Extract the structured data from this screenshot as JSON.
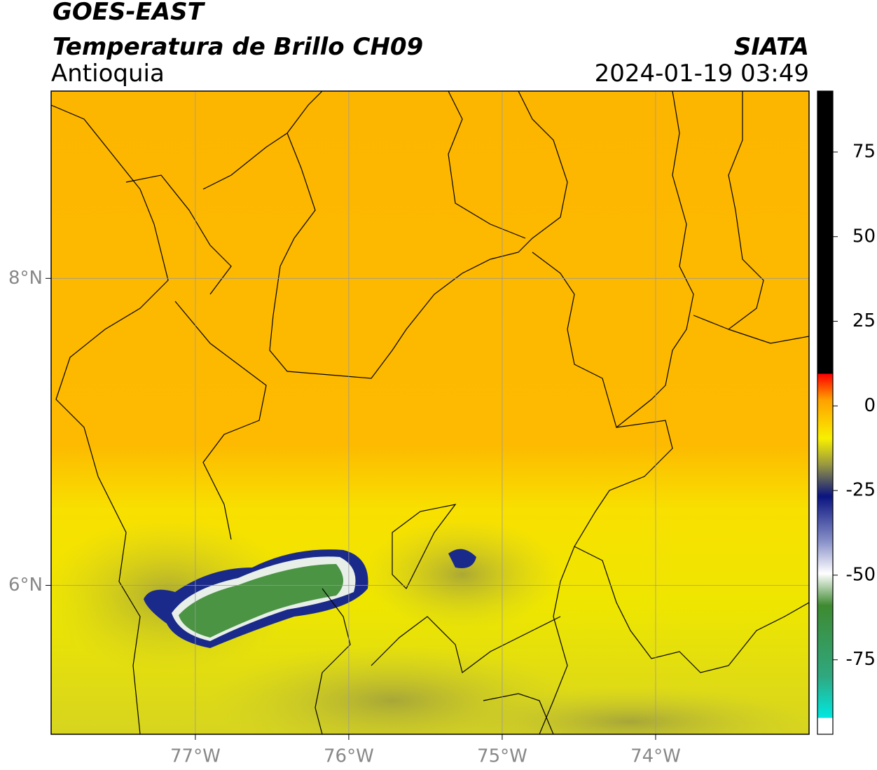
{
  "header": {
    "title": "GOES-EAST",
    "subtitle": "Temperatura de Brillo CH09",
    "region": "Antioquia",
    "source": "SIATA",
    "datetime": "2024-01-19 03:49"
  },
  "map": {
    "xlim": [
      -77.94,
      -73.0
    ],
    "ylim": [
      5.03,
      9.22
    ],
    "xticks": [
      {
        "value": -77,
        "label": "77°W"
      },
      {
        "value": -76,
        "label": "76°W"
      },
      {
        "value": -75,
        "label": "75°W"
      },
      {
        "value": -74,
        "label": "74°W"
      }
    ],
    "yticks": [
      {
        "value": 8,
        "label": "8°N"
      },
      {
        "value": 6,
        "label": "6°N"
      }
    ]
  },
  "colorbar": {
    "lim": [
      -97,
      93
    ],
    "ticks": [
      75,
      50,
      25,
      0,
      -25,
      -50,
      -75
    ]
  }
}
